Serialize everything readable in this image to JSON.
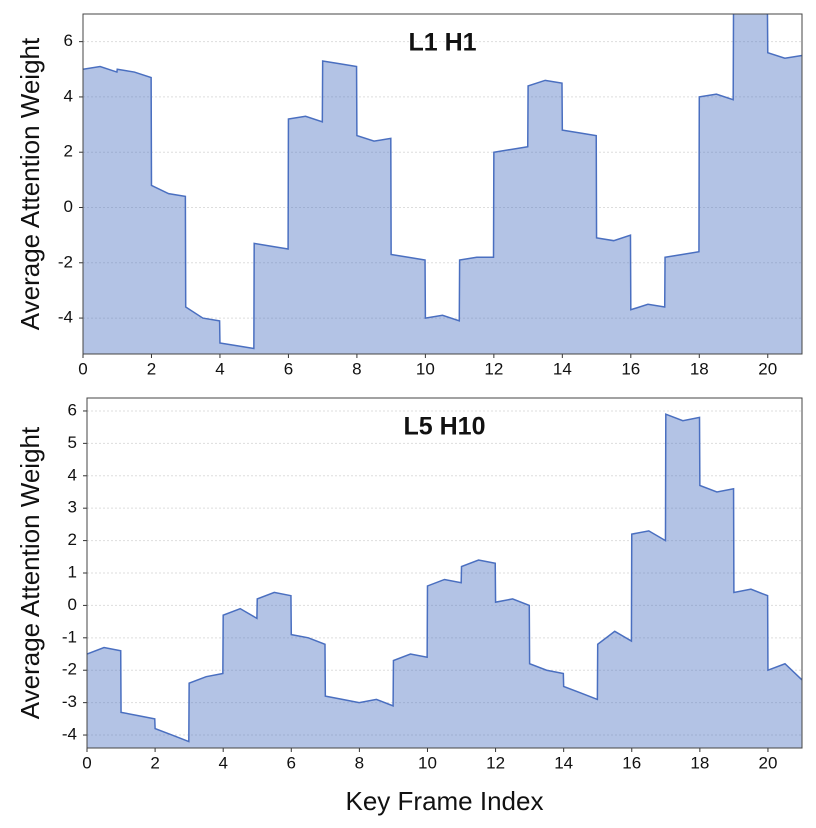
{
  "chart_data": [
    {
      "type": "area",
      "title": "L1 H1",
      "ylabel": "Average Attention Weight",
      "xlim": [
        0,
        21
      ],
      "xticks": [
        0,
        2,
        4,
        6,
        8,
        10,
        12,
        14,
        16,
        18,
        20
      ],
      "ylim": [
        -5.3,
        7.0
      ],
      "yticks": [
        -4,
        -2,
        0,
        2,
        4,
        6
      ],
      "grid": true,
      "series": [
        {
          "color": "#4a6fc0",
          "x": [
            0,
            0.5,
            0.99,
            1,
            1.5,
            1.99,
            2,
            2.5,
            2.99,
            3,
            3.5,
            3.99,
            4,
            4.5,
            4.99,
            5,
            5.5,
            5.99,
            6,
            6.5,
            6.99,
            7,
            7.5,
            7.99,
            8,
            8.5,
            8.99,
            9,
            9.5,
            9.99,
            10,
            10.5,
            10.99,
            11,
            11.5,
            11.99,
            12,
            12.5,
            12.99,
            13,
            13.5,
            13.99,
            14,
            14.5,
            14.99,
            15,
            15.5,
            15.99,
            16,
            16.5,
            16.99,
            17,
            17.5,
            17.99,
            18,
            18.5,
            18.99,
            19,
            19.5,
            19.99,
            20,
            20.5,
            21
          ],
          "values": [
            5.0,
            5.1,
            4.9,
            5.0,
            4.9,
            4.7,
            0.8,
            0.5,
            0.4,
            -3.6,
            -4.0,
            -4.1,
            -4.9,
            -5.0,
            -5.1,
            -1.3,
            -1.4,
            -1.5,
            3.2,
            3.3,
            3.1,
            5.3,
            5.2,
            5.1,
            2.6,
            2.4,
            2.5,
            -1.7,
            -1.8,
            -1.9,
            -4.0,
            -3.9,
            -4.1,
            -1.9,
            -1.8,
            -1.8,
            2.0,
            2.1,
            2.2,
            4.4,
            4.6,
            4.5,
            2.8,
            2.7,
            2.6,
            -1.1,
            -1.2,
            -1.0,
            -3.7,
            -3.5,
            -3.6,
            -1.8,
            -1.7,
            -1.6,
            4.0,
            4.1,
            3.9,
            7.2,
            7.3,
            7.2,
            5.6,
            5.4,
            5.5
          ]
        }
      ]
    },
    {
      "type": "area",
      "title": "L5 H10",
      "ylabel": "Average Attention Weight",
      "xlabel": "Key Frame Index",
      "xlim": [
        0,
        21
      ],
      "xticks": [
        0,
        2,
        4,
        6,
        8,
        10,
        12,
        14,
        16,
        18,
        20
      ],
      "ylim": [
        -4.4,
        6.4
      ],
      "yticks": [
        -4,
        -3,
        -2,
        -1,
        0,
        1,
        2,
        3,
        4,
        5,
        6
      ],
      "grid": true,
      "series": [
        {
          "color": "#4a6fc0",
          "x": [
            0,
            0.5,
            0.99,
            1,
            1.5,
            1.99,
            2,
            2.5,
            2.99,
            3,
            3.5,
            3.99,
            4,
            4.5,
            4.99,
            5,
            5.5,
            5.99,
            6,
            6.5,
            6.99,
            7,
            7.5,
            7.99,
            8,
            8.5,
            8.99,
            9,
            9.5,
            9.99,
            10,
            10.5,
            10.99,
            11,
            11.5,
            11.99,
            12,
            12.5,
            12.99,
            13,
            13.5,
            13.99,
            14,
            14.5,
            14.99,
            15,
            15.5,
            15.99,
            16,
            16.5,
            16.99,
            17,
            17.5,
            17.99,
            18,
            18.5,
            18.99,
            19,
            19.5,
            19.99,
            20,
            20.5,
            21
          ],
          "values": [
            -1.5,
            -1.3,
            -1.4,
            -3.3,
            -3.4,
            -3.5,
            -3.8,
            -4.0,
            -4.2,
            -2.4,
            -2.2,
            -2.1,
            -0.3,
            -0.1,
            -0.4,
            0.2,
            0.4,
            0.3,
            -0.9,
            -1.0,
            -1.2,
            -2.8,
            -2.9,
            -3.0,
            -3.0,
            -2.9,
            -3.1,
            -1.7,
            -1.5,
            -1.6,
            0.6,
            0.8,
            0.7,
            1.2,
            1.4,
            1.3,
            0.1,
            0.2,
            0.0,
            -1.8,
            -2.0,
            -2.1,
            -2.5,
            -2.7,
            -2.9,
            -1.2,
            -0.8,
            -1.1,
            2.2,
            2.3,
            2.0,
            5.9,
            5.7,
            5.8,
            3.7,
            3.5,
            3.6,
            0.4,
            0.5,
            0.3,
            -2.0,
            -1.8,
            -2.3
          ]
        }
      ]
    }
  ]
}
